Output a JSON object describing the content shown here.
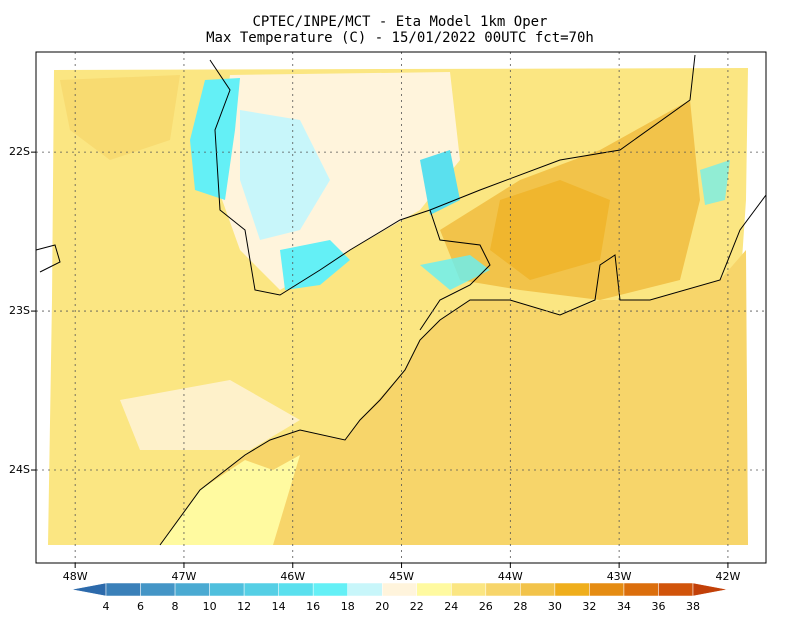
{
  "header": {
    "title": [
      "CPTEC/INPE/MCT -  Eta Model 1km Oper",
      "Max Temperature (C) - 15/01/2022 00UTC fct=70h"
    ]
  },
  "map": {
    "xlim": [
      -48.36,
      -41.65
    ],
    "ylim": [
      -24.585,
      -21.37
    ],
    "xticks": [
      {
        "value": -48,
        "label": "48W"
      },
      {
        "value": -47,
        "label": "47W"
      },
      {
        "value": -46,
        "label": "46W"
      },
      {
        "value": -45,
        "label": "45W"
      },
      {
        "value": -44,
        "label": "44W"
      },
      {
        "value": -43,
        "label": "43W"
      },
      {
        "value": -42,
        "label": "42W"
      }
    ],
    "yticks": [
      {
        "value": -22,
        "label": "22S"
      },
      {
        "value": -23,
        "label": "23S"
      },
      {
        "value": -24,
        "label": "24S"
      }
    ],
    "grid": true
  },
  "colorbar": {
    "levels": [
      4,
      6,
      8,
      10,
      12,
      14,
      16,
      18,
      20,
      22,
      24,
      26,
      28,
      30,
      32,
      34,
      36,
      38
    ],
    "colors": [
      "#2c6aab",
      "#3a80b9",
      "#4495c6",
      "#4aaad2",
      "#4fbfdd",
      "#55cfe5",
      "#5ae0ee",
      "#64f0f6",
      "#c8f6fa",
      "#fff4dc",
      "#fffaa0",
      "#fbe682",
      "#f7d56a",
      "#f2c34a",
      "#efae1c",
      "#e58c13",
      "#db6e0c",
      "#d1540a",
      "#c24008"
    ]
  }
}
